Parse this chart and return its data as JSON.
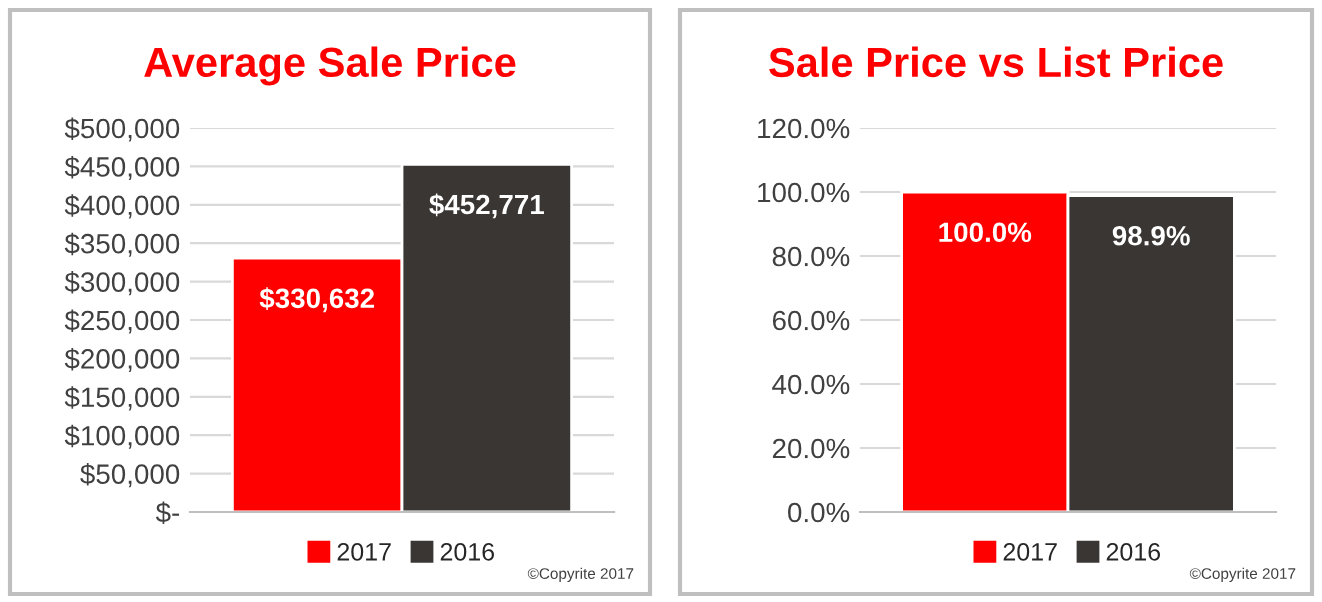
{
  "chart_data": [
    {
      "type": "bar",
      "title": "Average Sale Price",
      "categories": [
        null
      ],
      "series": [
        {
          "name": "2017",
          "color": "#ff0000",
          "values": [
            330632
          ],
          "value_labels": [
            "$330,632"
          ]
        },
        {
          "name": "2016",
          "color": "#3a3634",
          "values": [
            452771
          ],
          "value_labels": [
            "$452,771"
          ]
        }
      ],
      "ylim": [
        0,
        500000
      ],
      "yticks": [
        {
          "value": 0,
          "label": "$-"
        },
        {
          "value": 50000,
          "label": "$50,000"
        },
        {
          "value": 100000,
          "label": "$100,000"
        },
        {
          "value": 150000,
          "label": "$150,000"
        },
        {
          "value": 200000,
          "label": "$200,000"
        },
        {
          "value": 250000,
          "label": "$250,000"
        },
        {
          "value": 300000,
          "label": "$300,000"
        },
        {
          "value": 350000,
          "label": "$350,000"
        },
        {
          "value": 400000,
          "label": "$400,000"
        },
        {
          "value": 450000,
          "label": "$450,000"
        },
        {
          "value": 500000,
          "label": "$500,000"
        }
      ],
      "grid": "y",
      "legend": "bottom",
      "tick_labels": "y",
      "annotations": [
        "©Copyrite 2017"
      ]
    },
    {
      "type": "bar",
      "title": "Sale Price vs List Price",
      "categories": [
        null
      ],
      "series": [
        {
          "name": "2017",
          "color": "#ff0000",
          "values": [
            100.0
          ],
          "value_labels": [
            "100.0%"
          ]
        },
        {
          "name": "2016",
          "color": "#3a3634",
          "values": [
            98.9
          ],
          "value_labels": [
            "98.9%"
          ]
        }
      ],
      "ylim": [
        0,
        120
      ],
      "yticks": [
        {
          "value": 0,
          "label": "0.0%"
        },
        {
          "value": 20,
          "label": "20.0%"
        },
        {
          "value": 40,
          "label": "40.0%"
        },
        {
          "value": 60,
          "label": "60.0%"
        },
        {
          "value": 80,
          "label": "80.0%"
        },
        {
          "value": 100,
          "label": "100.0%"
        },
        {
          "value": 120,
          "label": "120.0%"
        }
      ],
      "grid": "y",
      "legend": "bottom",
      "tick_labels": "y",
      "annotations": [
        "©Copyrite 2017"
      ]
    }
  ]
}
